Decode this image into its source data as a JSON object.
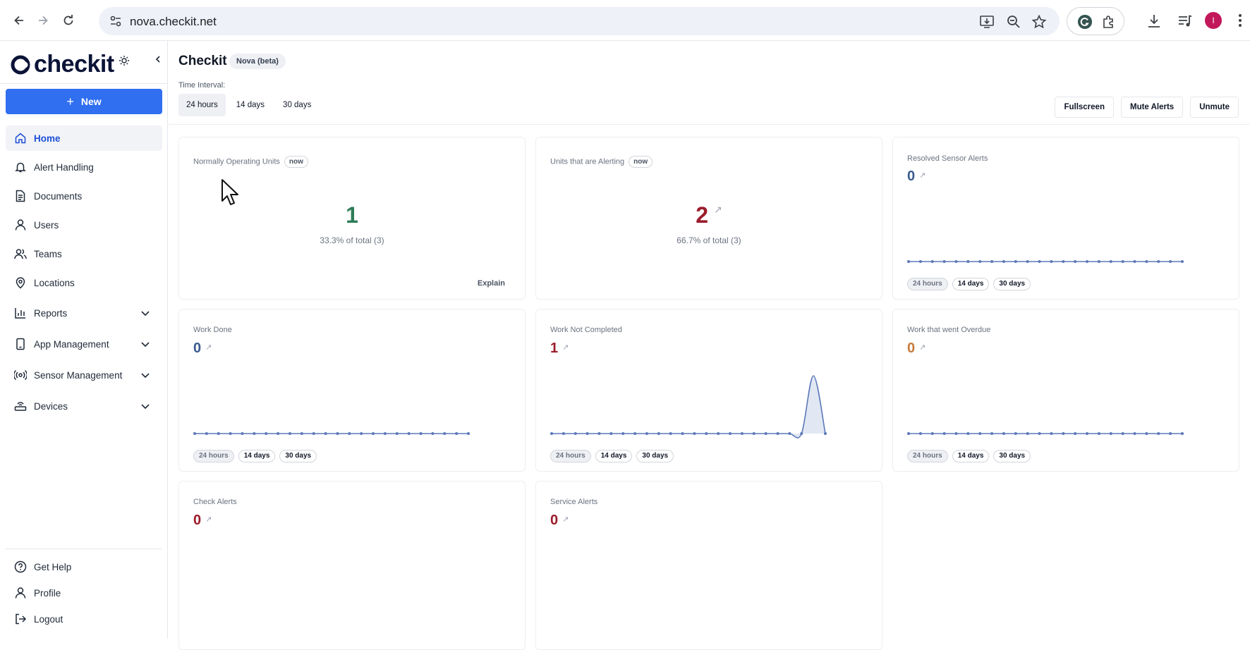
{
  "browser": {
    "url": "nova.checkit.net",
    "avatar_initial": "I"
  },
  "sidebar": {
    "brand": "checkit",
    "new_label": "New",
    "items": [
      {
        "label": "Home",
        "icon": "home-icon",
        "active": true
      },
      {
        "label": "Alert Handling",
        "icon": "bell-icon"
      },
      {
        "label": "Documents",
        "icon": "document-icon"
      },
      {
        "label": "Users",
        "icon": "user-icon"
      },
      {
        "label": "Teams",
        "icon": "team-icon"
      },
      {
        "label": "Locations",
        "icon": "location-pin-icon"
      },
      {
        "label": "Reports",
        "icon": "bar-chart-icon",
        "expandable": true
      },
      {
        "label": "App Management",
        "icon": "phone-icon",
        "expandable": true
      },
      {
        "label": "Sensor Management",
        "icon": "sensor-icon",
        "expandable": true
      },
      {
        "label": "Devices",
        "icon": "router-icon",
        "expandable": true
      }
    ],
    "bottom": [
      {
        "label": "Get Help",
        "icon": "help-icon"
      },
      {
        "label": "Profile",
        "icon": "user-icon"
      },
      {
        "label": "Logout",
        "icon": "logout-icon"
      }
    ]
  },
  "header": {
    "title": "Checkit",
    "badge": "Nova (beta)",
    "time_interval_label": "Time Interval:",
    "time_tabs": [
      "24 hours",
      "14 days",
      "30 days"
    ],
    "selected_tab": "24 hours",
    "actions": [
      "Fullscreen",
      "Mute Alerts",
      "Unmute"
    ]
  },
  "cards": {
    "normal_units": {
      "title": "Normally Operating Units",
      "badge": "now",
      "value": "1",
      "sub": "33.3% of total (3)",
      "explain": "Explain"
    },
    "alerting_units": {
      "title": "Units that are Alerting",
      "badge": "now",
      "value": "2",
      "arrow": "↗",
      "sub": "66.7% of total (3)"
    },
    "resolved_sensor_alerts": {
      "title": "Resolved Sensor Alerts",
      "value": "0",
      "arrow": "↗"
    },
    "work_done": {
      "title": "Work Done",
      "value": "0",
      "arrow": "↗"
    },
    "work_not_completed": {
      "title": "Work Not Completed",
      "value": "1",
      "arrow": "↗"
    },
    "work_overdue": {
      "title": "Work that went Overdue",
      "value": "0",
      "arrow": "↗"
    },
    "check_alerts": {
      "title": "Check Alerts",
      "value": "0",
      "arrow": "↗"
    },
    "service_alerts": {
      "title": "Service Alerts",
      "value": "0",
      "arrow": "↗"
    }
  },
  "pill_labels": [
    "24 hours",
    "14 days",
    "30 days"
  ],
  "chart_data": [
    {
      "type": "line",
      "series": [
        {
          "values": [
            0,
            0,
            0,
            0,
            0,
            0,
            0,
            0,
            0,
            0,
            0,
            0,
            0,
            0,
            0,
            0,
            0,
            0,
            0,
            0,
            0,
            0,
            0,
            0
          ]
        }
      ]
    },
    {
      "type": "line",
      "series": [
        {
          "values": [
            0,
            0,
            0,
            0,
            0,
            0,
            0,
            0,
            0,
            0,
            0,
            0,
            0,
            0,
            0,
            0,
            0,
            0,
            0,
            0,
            0,
            0,
            0,
            0
          ]
        }
      ]
    },
    {
      "type": "line",
      "series": [
        {
          "values": [
            0,
            0,
            0,
            0,
            0,
            0,
            0,
            0,
            0,
            0,
            0,
            0,
            0,
            0,
            0,
            0,
            0,
            0,
            0,
            0,
            0,
            0,
            1,
            0
          ]
        }
      ]
    },
    {
      "type": "line",
      "series": [
        {
          "values": [
            0,
            0,
            0,
            0,
            0,
            0,
            0,
            0,
            0,
            0,
            0,
            0,
            0,
            0,
            0,
            0,
            0,
            0,
            0,
            0,
            0,
            0,
            0,
            0
          ]
        }
      ]
    }
  ],
  "colors": {
    "accent": "#2f6ff0",
    "green": "#2e7d57",
    "red": "#9b1c2c",
    "blue": "#3b5b8f",
    "orange": "#c77a3a",
    "line": "#5b78b8"
  }
}
